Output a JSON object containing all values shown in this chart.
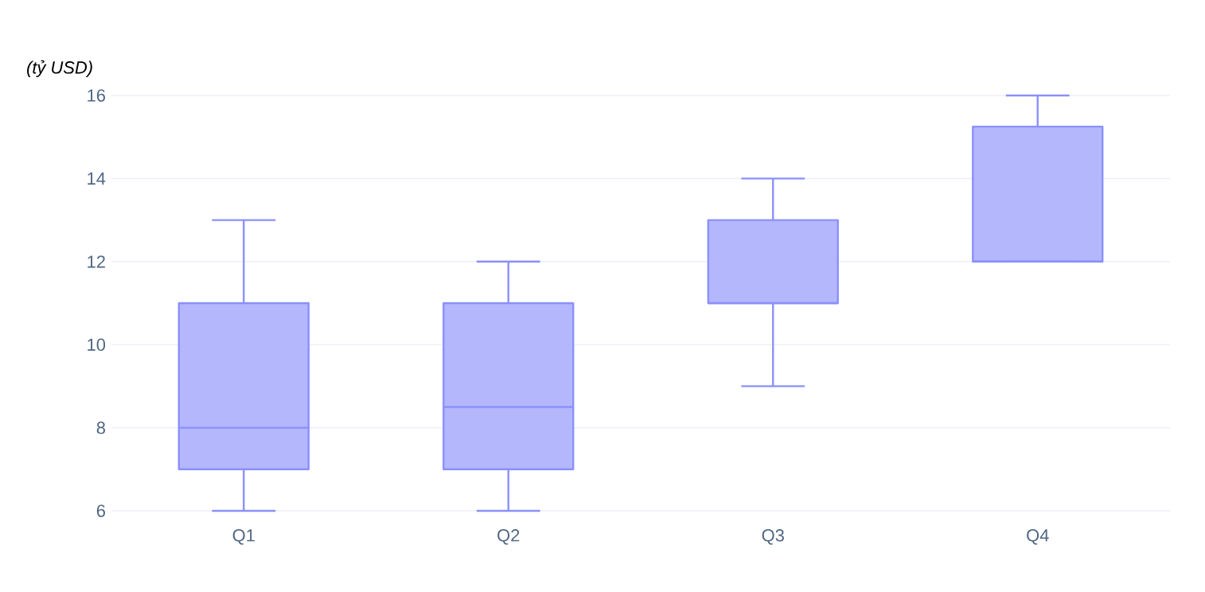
{
  "chart_data": {
    "type": "box",
    "ylabel": "(tỷ USD)",
    "categories": [
      "Q1",
      "Q2",
      "Q3",
      "Q4"
    ],
    "boxes": [
      {
        "low": 6,
        "q1": 7,
        "median": 8,
        "q3": 11,
        "high": 13
      },
      {
        "low": 6,
        "q1": 7,
        "median": 8.5,
        "q3": 11,
        "high": 12
      },
      {
        "low": 9,
        "q1": 11,
        "median": 11,
        "q3": 13,
        "high": 14
      },
      {
        "low": 12,
        "q1": 12,
        "median": 12,
        "q3": 15.25,
        "high": 16
      }
    ],
    "color": "#8b90fb",
    "ylim": [
      6,
      16
    ],
    "yticks": [
      6,
      8,
      10,
      12,
      14,
      16
    ],
    "grid": "y"
  }
}
